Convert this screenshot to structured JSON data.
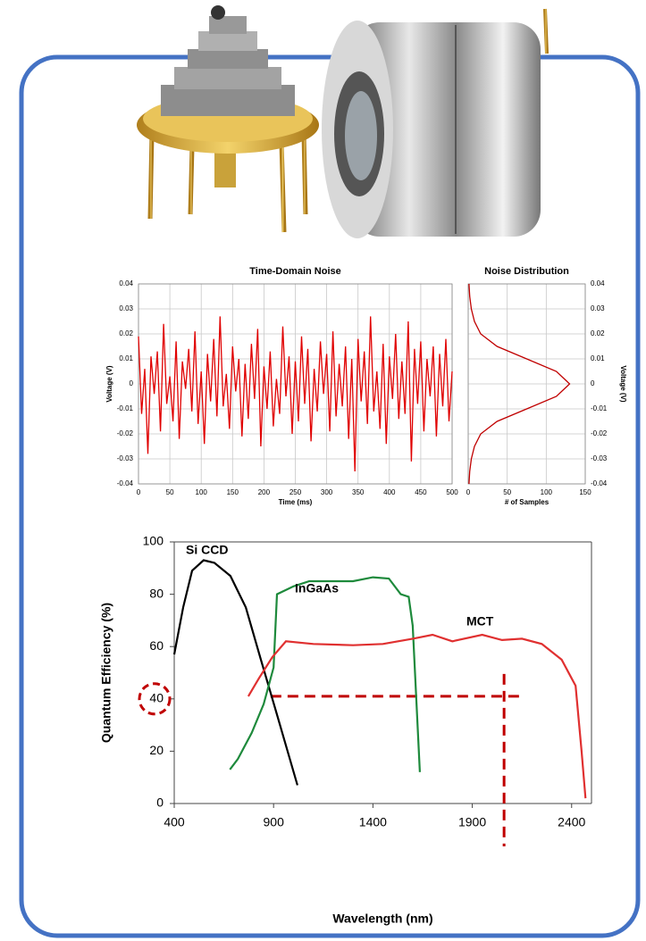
{
  "chart_data": [
    {
      "type": "line",
      "title": "Time-Domain Noise",
      "x_label": "Time (ms)",
      "y_label": "Voltage (V)",
      "grid": true,
      "xlim": [
        0,
        500
      ],
      "ylim": [
        -0.04,
        0.04
      ],
      "xticks": [
        0,
        50,
        100,
        150,
        200,
        250,
        300,
        350,
        400,
        450,
        500
      ],
      "yticks": [
        -0.04,
        -0.03,
        -0.02,
        -0.01,
        0,
        0.01,
        0.02,
        0.03,
        0.04
      ],
      "x": [
        0,
        5,
        10,
        15,
        20,
        25,
        30,
        35,
        40,
        45,
        50,
        55,
        60,
        65,
        70,
        75,
        80,
        85,
        90,
        95,
        100,
        105,
        110,
        115,
        120,
        125,
        130,
        135,
        140,
        145,
        150,
        155,
        160,
        165,
        170,
        175,
        180,
        185,
        190,
        195,
        200,
        205,
        210,
        215,
        220,
        225,
        230,
        235,
        240,
        245,
        250,
        255,
        260,
        265,
        270,
        275,
        280,
        285,
        290,
        295,
        300,
        305,
        310,
        315,
        320,
        325,
        330,
        335,
        340,
        345,
        350,
        355,
        360,
        365,
        370,
        375,
        380,
        385,
        390,
        395,
        400,
        405,
        410,
        415,
        420,
        425,
        430,
        435,
        440,
        445,
        450,
        455,
        460,
        465,
        470,
        475,
        480,
        485,
        490,
        495,
        500
      ],
      "series": [
        {
          "color": "#e00000",
          "values": [
            0.019,
            -0.012,
            0.006,
            -0.028,
            0.011,
            -0.004,
            0.013,
            -0.019,
            0.024,
            -0.008,
            0.003,
            -0.015,
            0.017,
            -0.022,
            0.009,
            -0.002,
            0.014,
            -0.011,
            0.021,
            -0.016,
            0.005,
            -0.024,
            0.012,
            -0.007,
            0.018,
            -0.013,
            0.027,
            -0.009,
            0.004,
            -0.018,
            0.015,
            -0.003,
            0.01,
            -0.021,
            0.008,
            -0.014,
            0.016,
            -0.006,
            0.022,
            -0.025,
            0.007,
            -0.01,
            0.013,
            -0.017,
            0.002,
            -0.012,
            0.023,
            -0.005,
            0.011,
            -0.02,
            0.009,
            -0.015,
            0.019,
            -0.008,
            0.014,
            -0.023,
            0.006,
            -0.011,
            0.017,
            -0.004,
            0.012,
            -0.019,
            0.021,
            -0.013,
            0.008,
            -0.009,
            0.015,
            -0.022,
            0.01,
            -0.035,
            0.018,
            -0.007,
            0.013,
            -0.016,
            0.027,
            -0.011,
            0.005,
            -0.018,
            0.016,
            -0.024,
            0.011,
            -0.006,
            0.02,
            -0.014,
            0.009,
            -0.012,
            0.025,
            -0.031,
            0.014,
            -0.008,
            0.017,
            -0.019,
            0.01,
            -0.005,
            0.015,
            -0.021,
            0.012,
            -0.009,
            0.018,
            -0.015,
            0.005
          ]
        }
      ]
    },
    {
      "type": "line",
      "orientation": "horizontal",
      "title": "Noise Distribution",
      "x_label": "# of Samples",
      "y_label": "Voltage (V)",
      "y_axis_side": "right",
      "grid": true,
      "xlim": [
        0,
        150
      ],
      "ylim": [
        -0.04,
        0.04
      ],
      "xticks": [
        0,
        50,
        100,
        150
      ],
      "yticks": [
        -0.04,
        -0.03,
        -0.02,
        -0.01,
        0,
        0.01,
        0.02,
        0.03,
        0.04
      ],
      "y": [
        -0.04,
        -0.035,
        -0.03,
        -0.025,
        -0.02,
        -0.015,
        -0.01,
        -0.005,
        0,
        0.005,
        0.01,
        0.015,
        0.02,
        0.025,
        0.03,
        0.035,
        0.04
      ],
      "series": [
        {
          "color": "#c00000",
          "values": [
            1,
            2,
            4,
            8,
            16,
            37,
            75,
            113,
            130,
            113,
            75,
            37,
            16,
            8,
            4,
            2,
            1
          ]
        }
      ]
    },
    {
      "type": "line",
      "x_label": "Wavelength (nm)",
      "y_label": "Quantum Efficiency (%)",
      "grid": false,
      "xlim": [
        400,
        2500
      ],
      "ylim": [
        0,
        100
      ],
      "xticks": [
        400,
        900,
        1400,
        1900,
        2400
      ],
      "yticks": [
        0,
        20,
        40,
        60,
        80,
        100
      ],
      "threshold": {
        "y": 41,
        "x": 2060,
        "x_from": 885,
        "color": "#c00000"
      },
      "series": [
        {
          "name": "Si CCD",
          "color": "#000000",
          "x": [
            400,
            445,
            490,
            548,
            602,
            683,
            760,
            836,
            917,
            1020
          ],
          "values": [
            57,
            75,
            89,
            93,
            92,
            87,
            75,
            55,
            34,
            7
          ]
        },
        {
          "name": "InGaAs",
          "color": "#1e8a3c",
          "x": [
            680,
            720,
            790,
            850,
            900,
            917,
            1000,
            1080,
            1200,
            1300,
            1400,
            1480,
            1540,
            1580,
            1600,
            1636
          ],
          "values": [
            13,
            17,
            27,
            38,
            52,
            80,
            83,
            85,
            85,
            85,
            86.5,
            86,
            80,
            79,
            68,
            12
          ]
        },
        {
          "name": "MCT",
          "color": "#e03030",
          "x": [
            773,
            827,
            894,
            962,
            1100,
            1300,
            1450,
            1600,
            1700,
            1800,
            1950,
            2050,
            2150,
            2250,
            2350,
            2420,
            2450,
            2470
          ],
          "values": [
            41,
            48,
            56,
            62,
            61,
            60.5,
            61,
            63,
            64.5,
            62,
            64.5,
            62.5,
            63,
            61,
            55,
            45,
            20,
            2
          ]
        }
      ]
    }
  ]
}
